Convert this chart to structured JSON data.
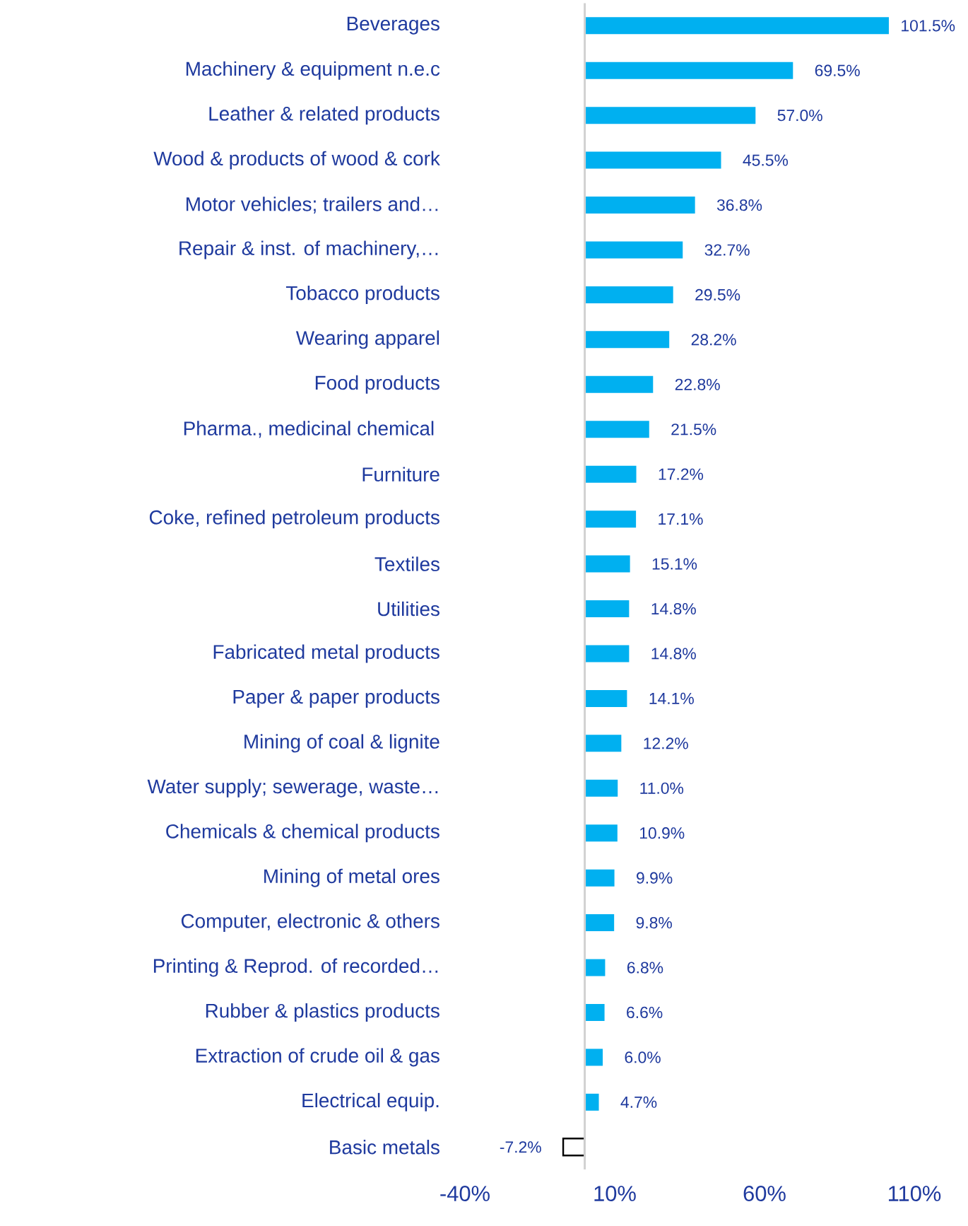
{
  "chart_data": {
    "type": "bar",
    "orientation": "horizontal",
    "categories": [
      "Beverages",
      "Machinery & equipment n.e.c",
      "Leather & related products",
      "Wood & products of wood & cork",
      "Motor vehicles; trailers and…",
      "Repair & inst. of machinery,…",
      "Tobacco products",
      "Wearing apparel",
      "Food products",
      "Pharma., medicinal chemical ",
      "Furniture",
      "Coke, refined petroleum products",
      "Textiles",
      "Utilities",
      "Fabricated metal products",
      "Paper & paper products",
      "Mining of coal & lignite",
      "Water supply; sewerage, waste…",
      "Chemicals & chemical products",
      "Mining of metal ores",
      "Computer, electronic & others",
      "Printing & Reprod. of recorded…",
      "Rubber & plastics products",
      "Extraction of crude oil & gas",
      "Electrical equip.",
      "Basic metals"
    ],
    "values": [
      101.5,
      69.5,
      57.0,
      45.5,
      36.8,
      32.7,
      29.5,
      28.2,
      22.8,
      21.5,
      17.2,
      17.1,
      15.1,
      14.8,
      14.8,
      14.1,
      12.2,
      11.0,
      10.9,
      9.9,
      9.8,
      6.8,
      6.6,
      6.0,
      4.7,
      -7.2
    ],
    "value_labels": [
      "101.5%",
      "69.5%",
      "57.0%",
      "45.5%",
      "36.8%",
      "32.7%",
      "29.5%",
      "28.2%",
      "22.8%",
      "21.5%",
      "17.2%",
      "17.1%",
      "15.1%",
      "14.8%",
      "14.8%",
      "14.1%",
      "12.2%",
      "11.0%",
      "10.9%",
      "9.9%",
      "9.8%",
      "6.8%",
      "6.6%",
      "6.0%",
      "4.7%",
      "-7.2%"
    ],
    "colors": [
      "#00b0f0",
      "#00b0f0",
      "#00b0f0",
      "#00b0f0",
      "#00b0f0",
      "#00b0f0",
      "#00b0f0",
      "#00b0f0",
      "#00b0f0",
      "#00b0f0",
      "#00b0f0",
      "#00b0f0",
      "#00b0f0",
      "#00b0f0",
      "#00b0f0",
      "#00b0f0",
      "#00b0f0",
      "#00b0f0",
      "#00b0f0",
      "#00b0f0",
      "#00b0f0",
      "#00b0f0",
      "#00b0f0",
      "#00b0f0",
      "#00b0f0",
      "#ffffff"
    ],
    "xlim": [
      -40,
      110
    ],
    "xticks": [
      {
        "value": -40,
        "label": "-40%"
      },
      {
        "value": 10,
        "label": "10%"
      },
      {
        "value": 60,
        "label": "60%"
      },
      {
        "value": 110,
        "label": "110%"
      }
    ],
    "grid": false
  }
}
